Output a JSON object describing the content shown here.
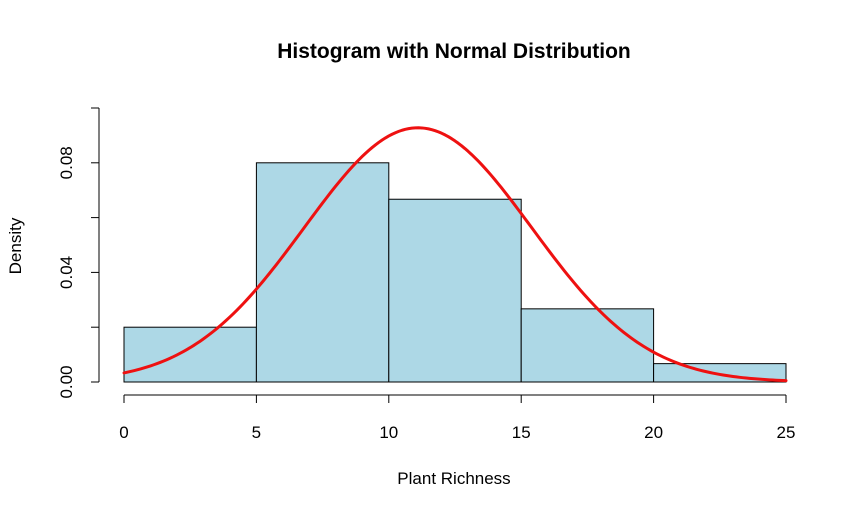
{
  "chart_data": {
    "type": "bar",
    "title": "Histogram with Normal Distribution",
    "xlabel": "Plant Richness",
    "ylabel": "Density",
    "bins": [
      {
        "start": 0,
        "end": 5,
        "density": 0.02
      },
      {
        "start": 5,
        "end": 10,
        "density": 0.08
      },
      {
        "start": 10,
        "end": 15,
        "density": 0.0667
      },
      {
        "start": 15,
        "end": 20,
        "density": 0.0267
      },
      {
        "start": 20,
        "end": 25,
        "density": 0.0067
      }
    ],
    "normal_curve": {
      "mean": 11.1,
      "sd": 4.3
    },
    "x_ticks": [
      "0",
      "5",
      "10",
      "15",
      "20",
      "25"
    ],
    "y_ticks": [
      "0.00",
      "0.04",
      "0.08"
    ],
    "xlim": [
      0,
      25
    ],
    "ylim": [
      0,
      0.1
    ],
    "grid": false,
    "colors": {
      "bar_fill": "#add8e6",
      "bar_border": "#000000",
      "curve": "#ee1111"
    }
  }
}
